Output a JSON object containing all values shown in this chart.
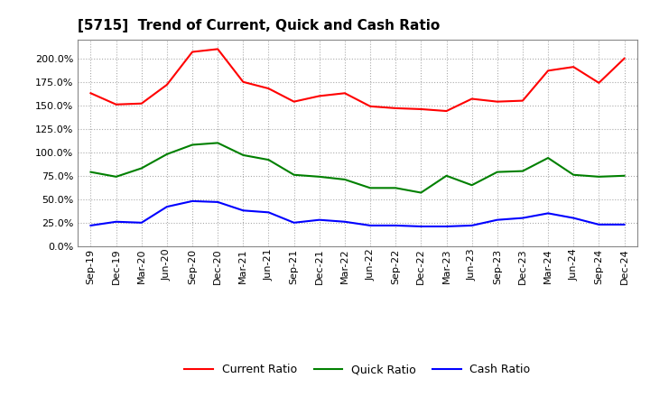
{
  "title": "[5715]  Trend of Current, Quick and Cash Ratio",
  "labels": [
    "Sep-19",
    "Dec-19",
    "Mar-20",
    "Jun-20",
    "Sep-20",
    "Dec-20",
    "Mar-21",
    "Jun-21",
    "Sep-21",
    "Dec-21",
    "Mar-22",
    "Jun-22",
    "Sep-22",
    "Dec-22",
    "Mar-23",
    "Jun-23",
    "Sep-23",
    "Dec-23",
    "Mar-24",
    "Jun-24",
    "Sep-24",
    "Dec-24"
  ],
  "current_ratio": [
    163,
    151,
    152,
    172,
    207,
    210,
    175,
    168,
    154,
    160,
    163,
    149,
    147,
    146,
    144,
    157,
    154,
    155,
    187,
    191,
    174,
    200
  ],
  "quick_ratio": [
    79,
    74,
    83,
    98,
    108,
    110,
    97,
    92,
    76,
    74,
    71,
    62,
    62,
    57,
    75,
    65,
    79,
    80,
    94,
    76,
    74,
    75
  ],
  "cash_ratio": [
    22,
    26,
    25,
    42,
    48,
    47,
    38,
    36,
    25,
    28,
    26,
    22,
    22,
    21,
    21,
    22,
    28,
    30,
    35,
    30,
    23,
    23
  ],
  "current_color": "#FF0000",
  "quick_color": "#008000",
  "cash_color": "#0000FF",
  "ylim": [
    0,
    220
  ],
  "yticks": [
    0,
    25,
    50,
    75,
    100,
    125,
    150,
    175,
    200
  ],
  "background_color": "#FFFFFF",
  "grid_color": "#AAAAAA",
  "title_fontsize": 11,
  "tick_fontsize": 8,
  "legend_fontsize": 9
}
